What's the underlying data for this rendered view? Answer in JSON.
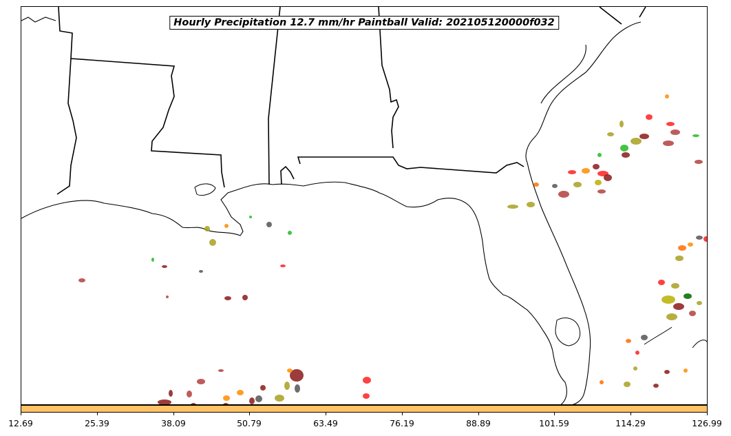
{
  "title": "Hourly Precipitation 12.7 mm/hr Paintball Valid: 202105120000f032",
  "colorbar": {
    "color": "#ffc266"
  },
  "xaxis": {
    "ticks": [
      "12.69",
      "25.39",
      "38.09",
      "50.79",
      "63.49",
      "76.19",
      "88.89",
      "101.59",
      "114.29",
      "126.99"
    ]
  },
  "colors": {
    "member_palette": [
      "#8b1a1a",
      "#ff2020",
      "#ff8c00",
      "#a8a020",
      "#22bb22",
      "#555555",
      "#b34040",
      "#b8b000",
      "#006600",
      "#ff6f00"
    ]
  }
}
